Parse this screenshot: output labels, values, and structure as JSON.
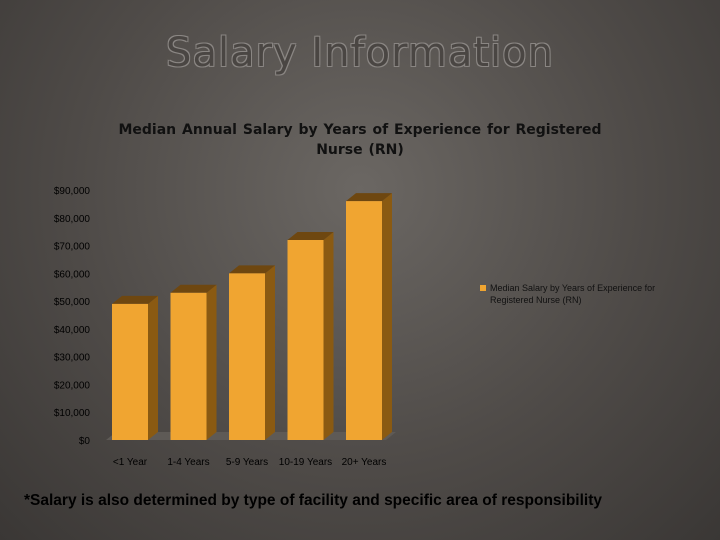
{
  "slide": {
    "title": "Salary Information",
    "footnote": "*Salary is also determined by type of facility and specific area of responsibility"
  },
  "chart_data": {
    "type": "bar",
    "title": "Median Annual Salary by Years of Experience for    Registered Nurse (RN)",
    "categories": [
      "<1 Year",
      "1-4 Years",
      "5-9 Years",
      "10-19 Years",
      "20+ Years"
    ],
    "series": [
      {
        "name": "Median Salary by Years of Experience for Registered Nurse (RN)",
        "values": [
          49000,
          53000,
          60000,
          72000,
          86000
        ],
        "color": "#f0a531"
      }
    ],
    "y_ticks": [
      "$0",
      "$10,000",
      "$20,000",
      "$30,000",
      "$40,000",
      "$50,000",
      "$60,000",
      "$70,000",
      "$80,000",
      "$90,000"
    ],
    "ylim": [
      0,
      90000
    ],
    "xlabel": "",
    "ylabel": "",
    "grid": false,
    "legend_position": "right",
    "bar_style": "3d"
  }
}
